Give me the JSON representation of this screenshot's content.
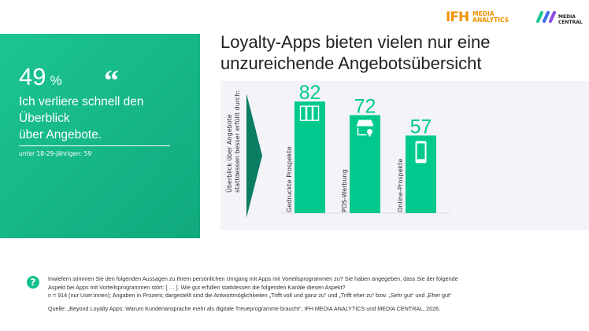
{
  "logos": {
    "ifh_big": "IFH",
    "ifh_small1": "MEDIA",
    "ifh_small2": "ANALYTICS",
    "mc1": "MEDIA",
    "mc2": "CENTRAL"
  },
  "highlight": {
    "value": "49",
    "unit": "%",
    "quote": "“",
    "statement": [
      "Ich verliere schnell den",
      "Überblick",
      "über Angebote."
    ],
    "subgroup": "unter 18-29-jährigen: 59"
  },
  "title_lines": [
    "Loyalty-Apps bieten vielen nur eine",
    "unzureichende Angebotsübersicht"
  ],
  "chart_data": {
    "type": "bar",
    "ylabel_lines": [
      "Überblick über Angebote",
      "stattdessen besser erfüllt durch:"
    ],
    "categories": [
      "Gedruckte Prospekte",
      "POS-Werbung",
      "Online-Prospekte"
    ],
    "values": [
      82,
      72,
      57
    ],
    "icons": [
      "brochure-icon",
      "store-location-icon",
      "smartphone-icon"
    ],
    "ylim": [
      0,
      100
    ],
    "colors": {
      "bar": "#00c98e",
      "arrow": "#0a7d62",
      "label": "#00c98e"
    }
  },
  "footnote": {
    "lines": [
      "Inwiefern stimmen Sie den folgenden Aussagen zu Ihrem persönlichen Umgang mit Apps mit Vorteilsprogrammen zu? Sie haben angegeben, dass Sie der folgende",
      "Aspekt bei Apps mit Vorteilsprogrammen stört: [ … ]. Wie gut erfüllen stattdessen die folgenden Kanäle diesen Aspekt?",
      "n = 914 (nur User:innen); Angaben in Prozent; dargestellt sind die Antwortmöglichkeiten „Trifft voll und ganz zu“ und „Trifft eher zu“  bzw. „Sehr gut“ und „Eher gut“"
    ],
    "source": "Quelle: „Beyond Loyalty Apps: Warum Kundenansprache mehr als digitale Treueprogramme braucht“, IFH MEDIA ANALYTICS und MEDIA CENTRAL, 2026."
  }
}
